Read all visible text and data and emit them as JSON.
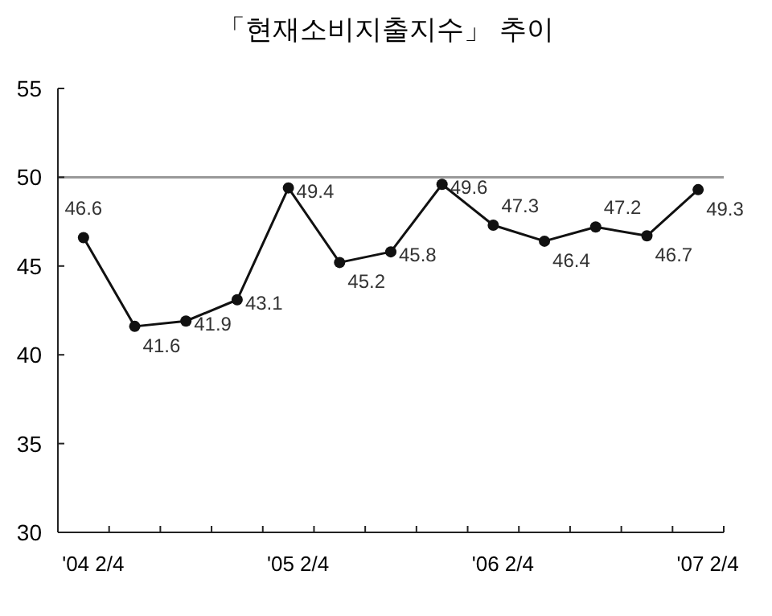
{
  "chart_data": {
    "type": "line",
    "title": "「현재소비지출지수」 추이",
    "categories": [
      "'04 2/4",
      null,
      null,
      null,
      "'05 2/4",
      null,
      null,
      null,
      "'06 2/4",
      null,
      null,
      null,
      "'07 2/4"
    ],
    "series": [
      {
        "color": "#111111",
        "values": [
          46.6,
          41.6,
          41.9,
          43.1,
          49.4,
          45.2,
          45.8,
          49.6,
          47.3,
          46.4,
          47.2,
          46.7,
          49.3
        ]
      }
    ],
    "ylim": [
      30,
      55
    ],
    "yticks": [
      30,
      35,
      40,
      45,
      50,
      55
    ],
    "grid": false,
    "marker": "circle",
    "line_style": "solid",
    "data_labels": true,
    "ref_lines": [
      {
        "axis": "y",
        "value": 50,
        "color": "#999999"
      }
    ]
  }
}
